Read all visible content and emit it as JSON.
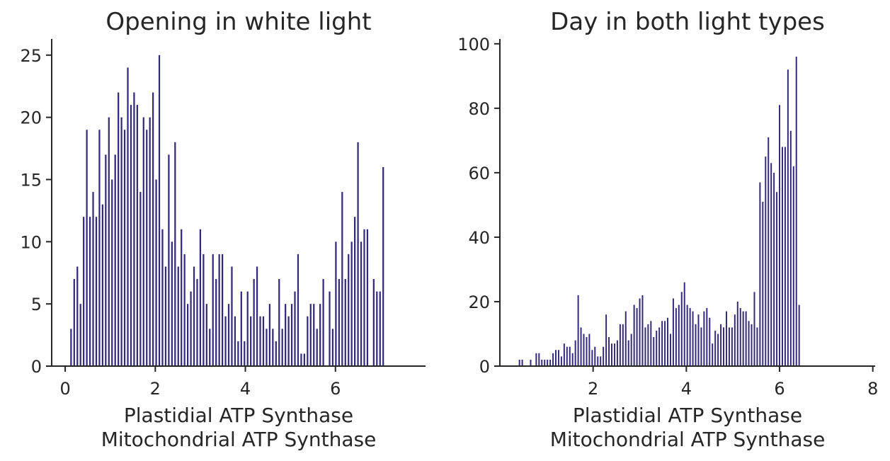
{
  "figure": {
    "bar_color": "#33297a",
    "text_color": "#262626"
  },
  "chart_data": [
    {
      "type": "bar",
      "title": "Opening in white light",
      "xlabel": [
        "Plastidial ATP Synthase",
        "Mitochondrial ATP Synthase"
      ],
      "ylabel": "",
      "xlim": [
        -0.3,
        8.0
      ],
      "ylim": [
        0,
        26.3
      ],
      "xticks": [
        0,
        2,
        4,
        6
      ],
      "yticks": [
        0,
        5,
        10,
        15,
        20,
        25
      ],
      "grid": false,
      "bar_width": 0.035,
      "x": [
        0.13,
        0.2,
        0.27,
        0.34,
        0.41,
        0.48,
        0.55,
        0.62,
        0.69,
        0.76,
        0.83,
        0.9,
        0.97,
        1.04,
        1.11,
        1.18,
        1.25,
        1.32,
        1.39,
        1.46,
        1.53,
        1.6,
        1.67,
        1.74,
        1.81,
        1.88,
        1.95,
        2.02,
        2.09,
        2.16,
        2.23,
        2.3,
        2.37,
        2.44,
        2.51,
        2.58,
        2.65,
        2.72,
        2.79,
        2.86,
        2.93,
        3.0,
        3.07,
        3.14,
        3.21,
        3.28,
        3.35,
        3.42,
        3.49,
        3.56,
        3.63,
        3.7,
        3.77,
        3.84,
        3.91,
        3.98,
        4.05,
        4.12,
        4.19,
        4.26,
        4.33,
        4.4,
        4.47,
        4.54,
        4.61,
        4.68,
        4.75,
        4.82,
        4.89,
        4.96,
        5.03,
        5.1,
        5.17,
        5.24,
        5.31,
        5.38,
        5.45,
        5.52,
        5.59,
        5.66,
        5.73,
        5.8,
        5.87,
        5.94,
        6.01,
        6.08,
        6.15,
        6.22,
        6.29,
        6.36,
        6.43,
        6.5,
        6.57,
        6.64,
        6.71,
        6.78,
        6.85,
        6.92,
        6.99,
        7.06,
        7.13,
        7.2,
        7.27,
        7.34,
        7.41,
        7.48,
        7.55
      ],
      "values": [
        3,
        7,
        8,
        5,
        12,
        19,
        12,
        14,
        12,
        19,
        13,
        17,
        20,
        15,
        17,
        22,
        20,
        19,
        24,
        21,
        22,
        21,
        14,
        20,
        19,
        20,
        22,
        15,
        25,
        11,
        8,
        17,
        10,
        18,
        8,
        11,
        9,
        5,
        6,
        8,
        7,
        11,
        9,
        5,
        3,
        9,
        7,
        9,
        9,
        4,
        5,
        8,
        4,
        2,
        6,
        2,
        6,
        4,
        7,
        8,
        4,
        4,
        3,
        5,
        3,
        2,
        7,
        3,
        5,
        4,
        5,
        6,
        9,
        1,
        1,
        4,
        5,
        5,
        3,
        5,
        7,
        0,
        6,
        3,
        10,
        7,
        14,
        7,
        9,
        10,
        12,
        18,
        10,
        11,
        11,
        0,
        7,
        6,
        6,
        16,
        0,
        0,
        0,
        0,
        0,
        0,
        0
      ]
    },
    {
      "type": "bar",
      "title": "Day in both light types",
      "xlabel": [
        "Plastidial ATP Synthase",
        "Mitochondrial ATP Synthase"
      ],
      "ylabel": "",
      "xlim": [
        0.0,
        8.05
      ],
      "ylim": [
        0,
        101.5
      ],
      "xticks": [
        2,
        4,
        6,
        8
      ],
      "yticks": [
        0,
        20,
        40,
        60,
        80,
        100
      ],
      "grid": false,
      "bar_width": 0.03,
      "x": [
        0.42,
        0.48,
        0.54,
        0.6,
        0.66,
        0.72,
        0.78,
        0.84,
        0.9,
        0.96,
        1.02,
        1.08,
        1.14,
        1.2,
        1.26,
        1.32,
        1.38,
        1.44,
        1.5,
        1.56,
        1.62,
        1.68,
        1.74,
        1.8,
        1.86,
        1.92,
        1.98,
        2.04,
        2.1,
        2.16,
        2.22,
        2.28,
        2.34,
        2.4,
        2.46,
        2.52,
        2.58,
        2.64,
        2.7,
        2.76,
        2.82,
        2.88,
        2.94,
        3.0,
        3.06,
        3.12,
        3.18,
        3.24,
        3.3,
        3.36,
        3.42,
        3.48,
        3.54,
        3.6,
        3.66,
        3.72,
        3.78,
        3.84,
        3.9,
        3.96,
        4.02,
        4.08,
        4.14,
        4.2,
        4.26,
        4.32,
        4.38,
        4.44,
        4.5,
        4.56,
        4.62,
        4.68,
        4.74,
        4.8,
        4.86,
        4.92,
        4.98,
        5.04,
        5.1,
        5.16,
        5.22,
        5.28,
        5.34,
        5.4,
        5.46,
        5.52,
        5.58,
        5.64,
        5.7,
        5.76,
        5.82,
        5.88,
        5.94,
        6.0,
        6.06,
        6.12,
        6.18,
        6.24,
        6.3,
        6.36,
        6.42,
        6.48,
        6.54,
        6.6,
        6.66,
        6.72,
        6.78,
        6.84,
        6.9,
        6.96,
        7.02,
        7.08,
        7.14,
        7.2,
        7.26,
        7.32,
        7.38,
        7.44,
        7.5,
        7.56,
        7.62
      ],
      "values": [
        2,
        2,
        0,
        0,
        2,
        0,
        4,
        4,
        2,
        2,
        2,
        2,
        4,
        5,
        5,
        3,
        7,
        6,
        6,
        4,
        8,
        22,
        12,
        10,
        9,
        10,
        5,
        6,
        3,
        3,
        6,
        16,
        9,
        7,
        7,
        8,
        13,
        13,
        17,
        8,
        10,
        19,
        18,
        21,
        22,
        12,
        13,
        14,
        9,
        11,
        12,
        14,
        14,
        15,
        10,
        21,
        18,
        19,
        23,
        26,
        19,
        18,
        17,
        13,
        16,
        12,
        17,
        18,
        15,
        7,
        11,
        10,
        13,
        12,
        17,
        12,
        12,
        16,
        20,
        18,
        17,
        17,
        14,
        13,
        23,
        12,
        57,
        51,
        65,
        71,
        63,
        60,
        54,
        81,
        68,
        68,
        92,
        73,
        62,
        96,
        19,
        0,
        0,
        0,
        0,
        0,
        0,
        0,
        0,
        0,
        0,
        0,
        0,
        0,
        0,
        0,
        0,
        0,
        0,
        0,
        0
      ]
    }
  ]
}
